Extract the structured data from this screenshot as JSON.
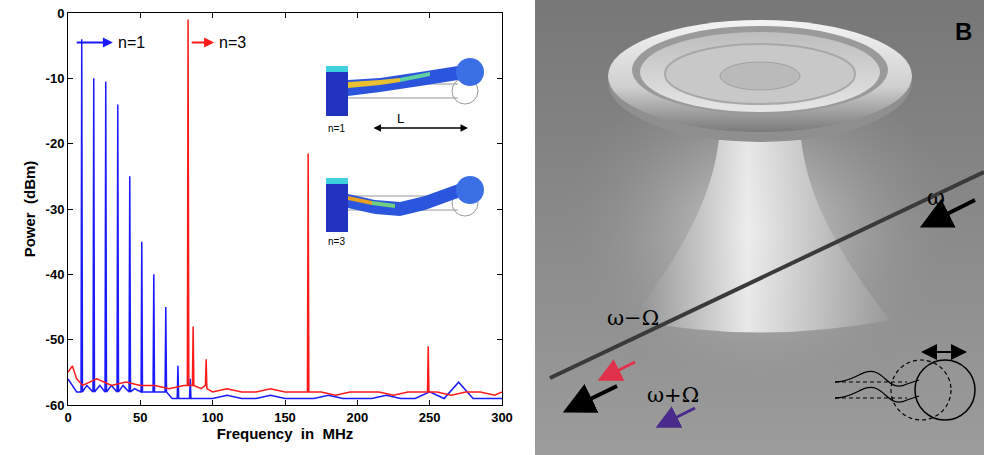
{
  "chart_data": {
    "type": "line",
    "x_label": "Frequency  in  MHz",
    "y_label": "Power  (dBm)",
    "xlim": [
      0,
      300
    ],
    "xticks": [
      0,
      50,
      100,
      150,
      200,
      250,
      300
    ],
    "ylim": [
      -60,
      0
    ],
    "yticks": [
      0,
      -10,
      -20,
      -30,
      -40,
      -50,
      -60
    ],
    "grid": false,
    "series": [
      {
        "name": "n=1",
        "color": "#1a1aff",
        "x": [
          0,
          3,
          6,
          9,
          9.5,
          10,
          13,
          17.3,
          17.8,
          18.3,
          22,
          25.6,
          26.1,
          26.6,
          30,
          33.9,
          34.4,
          34.9,
          38,
          42.2,
          42.7,
          43.2,
          46,
          50.5,
          51,
          51.5,
          55,
          58.8,
          59.3,
          59.8,
          63,
          67.1,
          67.6,
          68.1,
          72,
          75.5,
          76,
          76.5,
          80,
          84,
          84.5,
          85,
          90,
          100,
          110,
          120,
          130,
          140,
          150,
          160,
          170,
          180,
          190,
          200,
          210,
          220,
          230,
          240,
          250,
          260,
          270,
          280,
          290,
          300
        ],
        "values": [
          -56,
          -57,
          -58,
          -58,
          -4,
          -58,
          -57,
          -58,
          -10,
          -58,
          -57,
          -58,
          -10.5,
          -58,
          -57,
          -58,
          -14,
          -58,
          -57,
          -58,
          -25,
          -58,
          -57.5,
          -58,
          -35,
          -58,
          -58,
          -58,
          -40,
          -58,
          -58,
          -58,
          -45,
          -58,
          -59,
          -59,
          -54,
          -59,
          -59,
          -59,
          -56,
          -59,
          -59,
          -59,
          -58.5,
          -59,
          -59,
          -58.5,
          -59,
          -59,
          -59,
          -58.5,
          -59,
          -59,
          -59,
          -58.5,
          -59,
          -59,
          -58,
          -59,
          -56.5,
          -59,
          -59,
          -59
        ]
      },
      {
        "name": "n=3",
        "color": "#ff1a1a",
        "x": [
          0,
          3,
          6,
          10,
          20,
          30,
          40,
          50,
          60,
          70,
          80,
          82.5,
          83,
          83.5,
          86,
          86.5,
          87,
          92,
          95,
          95.5,
          96,
          100,
          110,
          120,
          130,
          140,
          150,
          160,
          165.5,
          166,
          166.5,
          175,
          185,
          195,
          205,
          215,
          225,
          235,
          245,
          248.5,
          249,
          249.5,
          255,
          265,
          275,
          285,
          295,
          300
        ],
        "values": [
          -55,
          -54,
          -56,
          -57,
          -56,
          -57,
          -56.5,
          -57,
          -57,
          -57.5,
          -57,
          -57,
          -1,
          -57,
          -57,
          -48,
          -57,
          -57.5,
          -57,
          -53,
          -57.5,
          -58,
          -57.5,
          -58,
          -58,
          -57.5,
          -58,
          -58,
          -58,
          -21.5,
          -58,
          -58,
          -58.5,
          -58,
          -58,
          -58,
          -58.5,
          -58,
          -58,
          -58,
          -51,
          -58,
          -58,
          -58.5,
          -58,
          -58,
          -58.5,
          -58
        ]
      }
    ],
    "inset_labels": [
      "n=1",
      "n=3"
    ],
    "length_label": "L"
  },
  "panel_b": {
    "label": "B",
    "input": "ω",
    "lower_sideband": "ω−Ω",
    "upper_sideband": "ω+Ω"
  }
}
